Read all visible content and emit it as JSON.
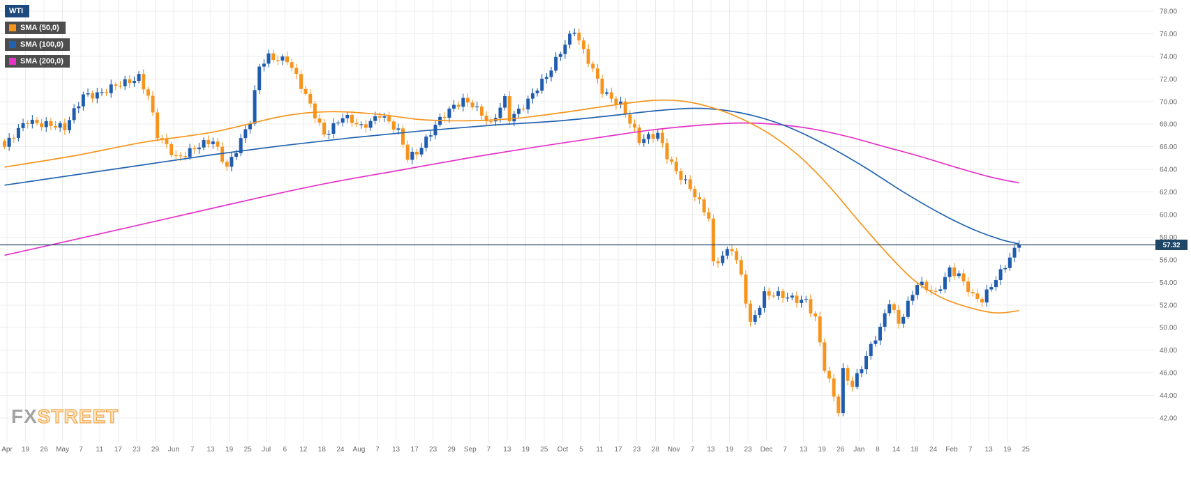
{
  "legend": {
    "items": [
      {
        "label": "WTI",
        "bg": "#1d4a7e",
        "text_color": "#ffffff",
        "swatch": null
      },
      {
        "label": "SMA (50,0)",
        "bg": "#4d4d4d",
        "text_color": "#ffffff",
        "swatch": "#f7941d"
      },
      {
        "label": "SMA (100,0)",
        "bg": "#4d4d4d",
        "text_color": "#ffffff",
        "swatch": "#2263b0"
      },
      {
        "label": "SMA (200,0)",
        "bg": "#4d4d4d",
        "text_color": "#ffffff",
        "swatch": "#e632c8"
      }
    ]
  },
  "watermark": {
    "fx": "FX",
    "street": "STREET"
  },
  "chart_data": {
    "type": "candlestick",
    "instrument": "WTI",
    "last_price": "57.32",
    "candle_count": 220,
    "grid": true,
    "legend_position": "top-left",
    "y_axis": {
      "side": "right",
      "min": 41.3,
      "max": 79.0,
      "ticks": [
        78,
        76,
        74,
        72,
        70,
        68,
        66,
        64,
        62,
        60,
        58,
        56,
        54,
        52,
        50,
        48,
        46,
        44,
        42
      ],
      "tick_format": "0.00"
    },
    "x_axis": {
      "labels": [
        "Apr",
        "19",
        "26",
        "May",
        "7",
        "11",
        "17",
        "23",
        "29",
        "Jun",
        "7",
        "13",
        "19",
        "25",
        "Jul",
        "6",
        "12",
        "18",
        "24",
        "Aug",
        "7",
        "13",
        "17",
        "23",
        "29",
        "Sep",
        "7",
        "13",
        "19",
        "25",
        "Oct",
        "5",
        "11",
        "17",
        "23",
        "28",
        "Nov",
        "7",
        "13",
        "19",
        "23",
        "Dec",
        "7",
        "13",
        "19",
        "26",
        "Jan",
        "8",
        "14",
        "18",
        "24",
        "Feb",
        "7",
        "13",
        "19",
        "25"
      ]
    },
    "price_anchors": [
      [
        0,
        66.0
      ],
      [
        5,
        68.3
      ],
      [
        9,
        68.1
      ],
      [
        13,
        67.5
      ],
      [
        17,
        70.7
      ],
      [
        21,
        70.7
      ],
      [
        25,
        71.5
      ],
      [
        29,
        72.3
      ],
      [
        31,
        70.5
      ],
      [
        33,
        66.9
      ],
      [
        37,
        65.1
      ],
      [
        41,
        65.9
      ],
      [
        45,
        66.4
      ],
      [
        48,
        64.3
      ],
      [
        53,
        68.2
      ],
      [
        55,
        73.0
      ],
      [
        57,
        74.0
      ],
      [
        61,
        73.8
      ],
      [
        65,
        70.4
      ],
      [
        69,
        67.2
      ],
      [
        73,
        68.6
      ],
      [
        77,
        67.7
      ],
      [
        81,
        69.0
      ],
      [
        85,
        67.2
      ],
      [
        87,
        65.0
      ],
      [
        89,
        65.6
      ],
      [
        93,
        67.9
      ],
      [
        97,
        69.5
      ],
      [
        99,
        70.2
      ],
      [
        101,
        69.9
      ],
      [
        105,
        67.8
      ],
      [
        108,
        70.2
      ],
      [
        109,
        68.6
      ],
      [
        113,
        70.1
      ],
      [
        117,
        72.1
      ],
      [
        121,
        75.3
      ],
      [
        123,
        76.4
      ],
      [
        125,
        74.3
      ],
      [
        129,
        71.0
      ],
      [
        133,
        69.8
      ],
      [
        137,
        66.4
      ],
      [
        141,
        67.3
      ],
      [
        143,
        65.3
      ],
      [
        145,
        63.7
      ],
      [
        149,
        61.7
      ],
      [
        152,
        59.9
      ],
      [
        153,
        55.7
      ],
      [
        157,
        56.9
      ],
      [
        159,
        54.5
      ],
      [
        161,
        50.4
      ],
      [
        164,
        53.0
      ],
      [
        169,
        52.6
      ],
      [
        173,
        52.5
      ],
      [
        175,
        50.8
      ],
      [
        177,
        46.3
      ],
      [
        180,
        42.6
      ],
      [
        181,
        46.2
      ],
      [
        183,
        45.0
      ],
      [
        185,
        46.6
      ],
      [
        189,
        49.8
      ],
      [
        191,
        52.4
      ],
      [
        193,
        50.5
      ],
      [
        197,
        53.8
      ],
      [
        201,
        53.0
      ],
      [
        204,
        55.3
      ],
      [
        206,
        54.6
      ],
      [
        209,
        52.6
      ],
      [
        211,
        52.4
      ],
      [
        213,
        53.9
      ],
      [
        217,
        56.1
      ],
      [
        219,
        57.32
      ]
    ],
    "series_overlays": [
      {
        "name": "SMA (50,0)",
        "color": "#f7941d",
        "points": [
          [
            0,
            64.2
          ],
          [
            15,
            65.2
          ],
          [
            30,
            66.4
          ],
          [
            45,
            67.3
          ],
          [
            60,
            68.7
          ],
          [
            70,
            69.1
          ],
          [
            80,
            68.9
          ],
          [
            90,
            68.4
          ],
          [
            100,
            68.3
          ],
          [
            110,
            68.5
          ],
          [
            120,
            69.0
          ],
          [
            130,
            69.6
          ],
          [
            140,
            70.1
          ],
          [
            147,
            70.0
          ],
          [
            154,
            69.3
          ],
          [
            160,
            68.3
          ],
          [
            166,
            66.9
          ],
          [
            172,
            65.0
          ],
          [
            178,
            62.5
          ],
          [
            184,
            59.6
          ],
          [
            190,
            56.8
          ],
          [
            196,
            54.3
          ],
          [
            202,
            52.7
          ],
          [
            208,
            51.8
          ],
          [
            214,
            51.3
          ],
          [
            219,
            51.5
          ]
        ]
      },
      {
        "name": "SMA (100,0)",
        "color": "#2263b0",
        "points": [
          [
            0,
            62.6
          ],
          [
            15,
            63.5
          ],
          [
            30,
            64.4
          ],
          [
            45,
            65.3
          ],
          [
            60,
            66.1
          ],
          [
            75,
            66.8
          ],
          [
            90,
            67.4
          ],
          [
            105,
            67.9
          ],
          [
            120,
            68.3
          ],
          [
            132,
            68.8
          ],
          [
            141,
            69.2
          ],
          [
            149,
            69.4
          ],
          [
            156,
            69.2
          ],
          [
            163,
            68.6
          ],
          [
            170,
            67.6
          ],
          [
            178,
            66.0
          ],
          [
            186,
            64.1
          ],
          [
            194,
            62.0
          ],
          [
            202,
            60.1
          ],
          [
            209,
            58.7
          ],
          [
            215,
            57.8
          ],
          [
            219,
            57.4
          ]
        ]
      },
      {
        "name": "SMA (200,0)",
        "color": "#e632c8",
        "points": [
          [
            0,
            56.4
          ],
          [
            12,
            57.5
          ],
          [
            25,
            58.7
          ],
          [
            40,
            60.1
          ],
          [
            55,
            61.5
          ],
          [
            70,
            62.8
          ],
          [
            85,
            63.9
          ],
          [
            100,
            65.0
          ],
          [
            115,
            66.0
          ],
          [
            128,
            66.8
          ],
          [
            140,
            67.5
          ],
          [
            150,
            67.9
          ],
          [
            158,
            68.1
          ],
          [
            166,
            68.0
          ],
          [
            174,
            67.6
          ],
          [
            182,
            66.9
          ],
          [
            190,
            66.0
          ],
          [
            198,
            65.1
          ],
          [
            206,
            64.1
          ],
          [
            213,
            63.3
          ],
          [
            219,
            62.8
          ]
        ]
      }
    ],
    "colors": {
      "up": "#1f5cad",
      "down": "#f7941d",
      "grid": "#ececec",
      "axis_text": "#666666",
      "price_line": "#1e4666",
      "price_label_text": "#ffffff"
    }
  }
}
